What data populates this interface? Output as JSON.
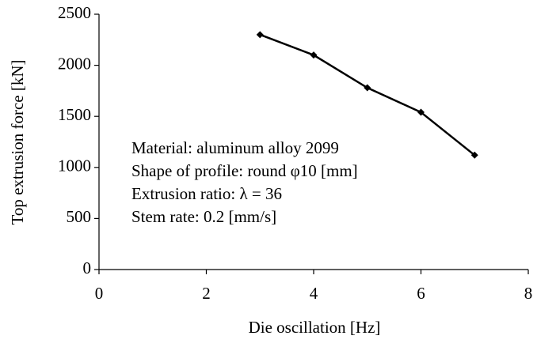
{
  "chart_data": {
    "type": "line",
    "x_label": "Die oscillation [Hz]",
    "y_label": "Top extrusion force [kN]",
    "x": [
      3,
      4,
      5,
      6,
      7
    ],
    "series": [
      {
        "name": "Top extrusion force",
        "color": "#000000",
        "values": [
          2300,
          2100,
          1780,
          1540,
          1120
        ]
      }
    ],
    "xlim": [
      0,
      8
    ],
    "xticks": [
      0,
      2,
      4,
      6,
      8
    ],
    "ylim": [
      0,
      2500
    ],
    "yticks": [
      0,
      500,
      1000,
      1500,
      2000,
      2500
    ],
    "grid": false,
    "annotations": [
      "Material: aluminum alloy 2099",
      "Shape of profile:  round φ10 [mm]",
      "Extrusion ratio: λ = 36",
      "Stem rate: 0.2 [mm/s]"
    ]
  }
}
